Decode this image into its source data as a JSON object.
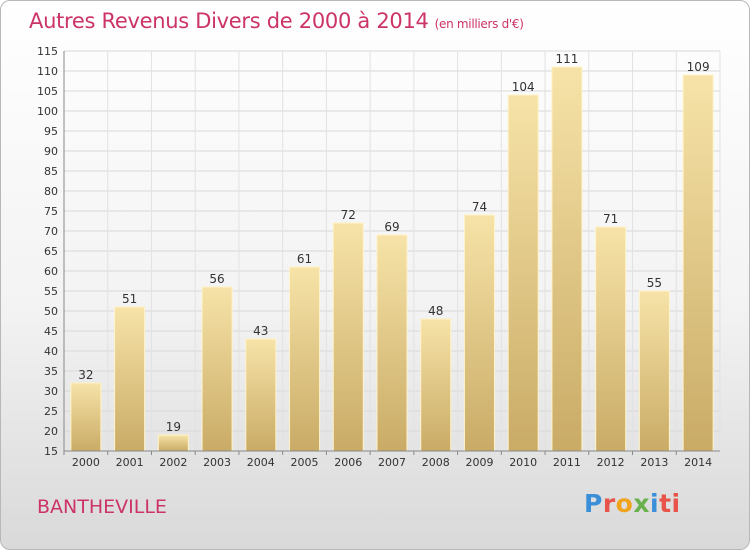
{
  "chart_data": {
    "type": "bar",
    "title": "Autres Revenus Divers de 2000 à 2014",
    "subtitle": "(en milliers d'€)",
    "categories": [
      "2000",
      "2001",
      "2002",
      "2003",
      "2004",
      "2005",
      "2006",
      "2007",
      "2008",
      "2009",
      "2010",
      "2011",
      "2012",
      "2013",
      "2014"
    ],
    "values": [
      32,
      51,
      19,
      56,
      43,
      61,
      72,
      69,
      48,
      74,
      104,
      111,
      71,
      55,
      109
    ],
    "ylim": [
      15,
      115
    ],
    "yticks": [
      15,
      20,
      25,
      30,
      35,
      40,
      45,
      50,
      55,
      60,
      65,
      70,
      75,
      80,
      85,
      90,
      95,
      100,
      105,
      110,
      115
    ],
    "grid": true,
    "bar_color": "#e8cb85"
  },
  "place_name": "BANTHEVILLE",
  "logo": {
    "text": "Proxiti"
  }
}
